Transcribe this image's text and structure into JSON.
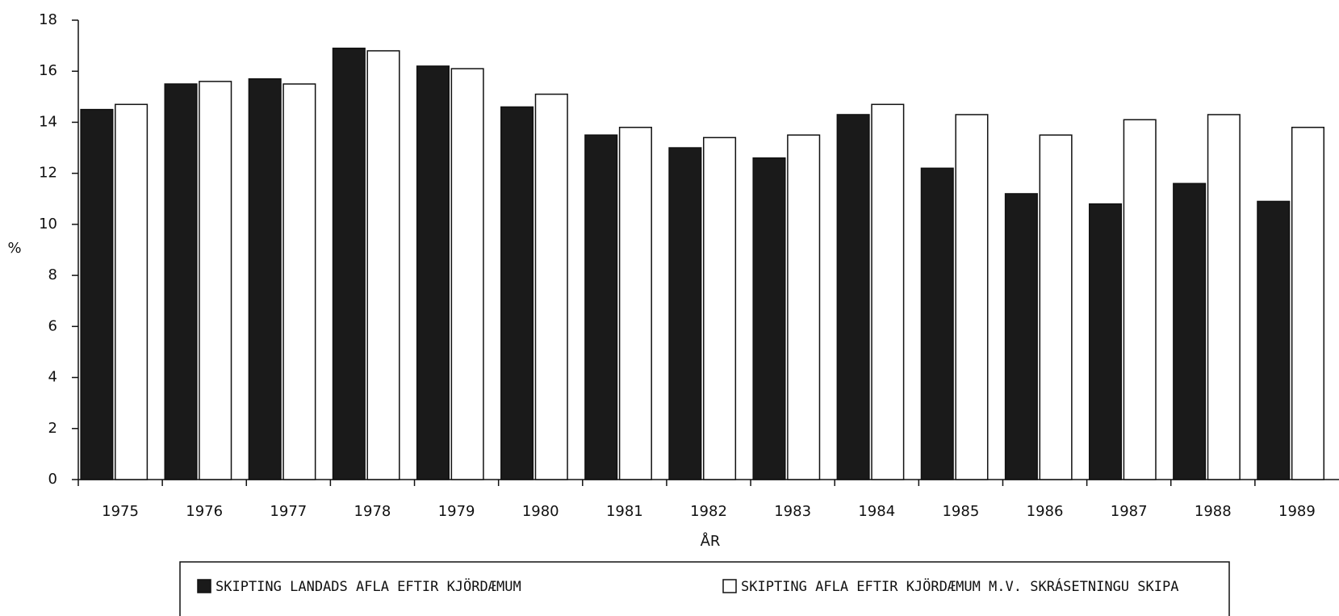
{
  "chart_data": {
    "type": "bar",
    "y_label": "%",
    "x_label": "ÅR",
    "categories": [
      "1975",
      "1976",
      "1977",
      "1978",
      "1979",
      "1980",
      "1981",
      "1982",
      "1983",
      "1984",
      "1985",
      "1986",
      "1987",
      "1988",
      "1989"
    ],
    "series": [
      {
        "name": "SKIPTING LANDADS AFLA EFTIR KJÖRDÆMUM",
        "color": "#1a1a1a",
        "values": [
          14.5,
          15.5,
          15.7,
          16.9,
          16.2,
          14.6,
          13.5,
          13.0,
          12.6,
          14.3,
          12.2,
          11.2,
          10.8,
          11.6,
          10.9
        ]
      },
      {
        "name": "SKIPTING AFLA EFTIR KJÖRDÆMUM M.V. SKRÁSETNINGU SKIPA",
        "color": "#ffffff",
        "values": [
          14.7,
          15.6,
          15.5,
          16.8,
          16.1,
          15.1,
          13.8,
          13.4,
          13.5,
          14.7,
          14.3,
          13.5,
          14.1,
          14.3,
          13.8
        ]
      }
    ],
    "ylim": [
      0,
      18
    ],
    "yticks": [
      0,
      2,
      4,
      6,
      8,
      10,
      12,
      14,
      16,
      18
    ]
  }
}
